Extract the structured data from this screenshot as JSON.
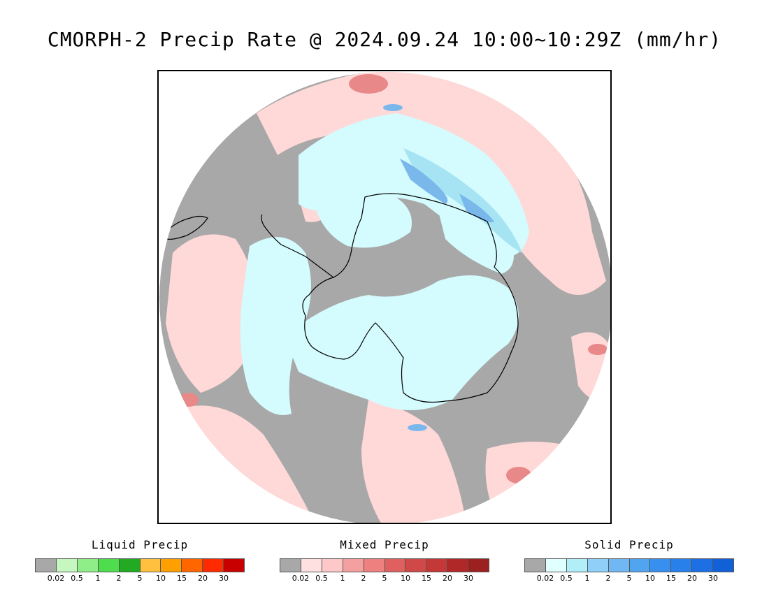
{
  "title": "CMORPH-2 Precip Rate @ 2024.09.24 10:00~10:29Z (mm/hr)",
  "legends": [
    {
      "title": "Liquid Precip",
      "colors": [
        "#a8a8a8",
        "#c6f7c0",
        "#90ee88",
        "#4ddd4d",
        "#22aa22",
        "#ffc040",
        "#ffa000",
        "#ff6600",
        "#ff2a00",
        "#c80000"
      ],
      "ticks": [
        "0.02",
        "0.5",
        "1",
        "2",
        "5",
        "10",
        "15",
        "20",
        "30"
      ]
    },
    {
      "title": "Mixed Precip",
      "colors": [
        "#a8a8a8",
        "#ffe0e0",
        "#ffc8c8",
        "#f4a0a0",
        "#ee8080",
        "#e06060",
        "#d04848",
        "#c43838",
        "#b02828",
        "#9c2020"
      ],
      "ticks": [
        "0.02",
        "0.5",
        "1",
        "2",
        "5",
        "10",
        "15",
        "20",
        "30"
      ]
    },
    {
      "title": "Solid Precip",
      "colors": [
        "#a8a8a8",
        "#e0ffff",
        "#b0eef8",
        "#90d0f8",
        "#70b8f4",
        "#50a4f0",
        "#3890ee",
        "#2880ea",
        "#1c70e4",
        "#1060d8"
      ],
      "ticks": [
        "0.02",
        "0.5",
        "1",
        "2",
        "5",
        "10",
        "15",
        "20",
        "30"
      ]
    }
  ],
  "map_colors": {
    "no_precip": "#a8a8a8",
    "mixed_light": "#ffd8d8",
    "solid_light": "#d4fbfd",
    "solid_mid": "#a6e4f4",
    "solid_heavy": "#7ab8ec",
    "mixed_heavy": "#e88888",
    "liquid_light": "#b8f0b0"
  }
}
